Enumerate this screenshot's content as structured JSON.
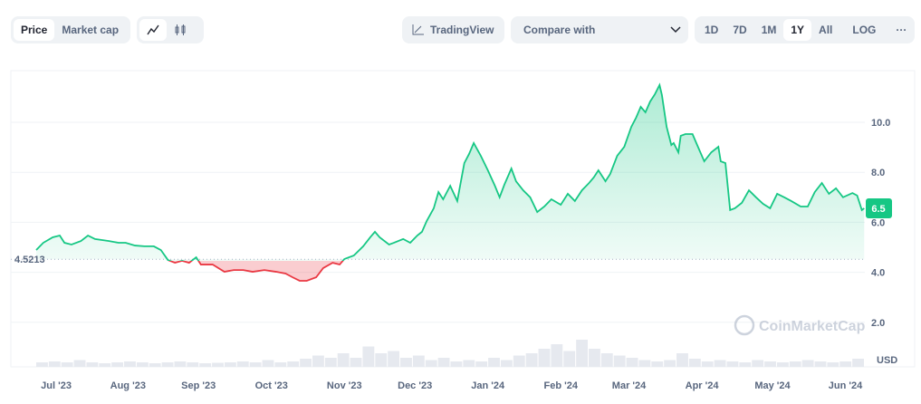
{
  "toolbar": {
    "view_tabs": [
      {
        "label": "Price",
        "active": true
      },
      {
        "label": "Market cap",
        "active": false
      }
    ],
    "chart_types": [
      {
        "icon": "line-chart-icon",
        "active": true
      },
      {
        "icon": "candlestick-icon",
        "active": false
      }
    ],
    "tradingview_label": "TradingView",
    "compare_label": "Compare with",
    "ranges": [
      {
        "label": "1D"
      },
      {
        "label": "7D"
      },
      {
        "label": "1M"
      },
      {
        "label": "1Y",
        "active": true
      },
      {
        "label": "All"
      }
    ],
    "log_label": "LOG",
    "more_label": "···"
  },
  "watermark": "CoinMarketCap",
  "colors": {
    "up": "#16c784",
    "down": "#ea3943"
  },
  "chart_data": {
    "type": "line",
    "x_unit": "days since first point (~2023-06-22)",
    "baseline": 4.5213,
    "baseline_label": "4.5213",
    "current_value_label": "6.5",
    "ylim": [
      0,
      12
    ],
    "yticks": [
      {
        "v": 2,
        "label": "2.0"
      },
      {
        "v": 4,
        "label": "4.0"
      },
      {
        "v": 6,
        "label": "6.0"
      },
      {
        "v": 8,
        "label": "8.0"
      },
      {
        "v": 10,
        "label": "10.0"
      }
    ],
    "ylabel": "USD",
    "xticks": [
      {
        "d": 8.5,
        "label": "Jul '23"
      },
      {
        "d": 39,
        "label": "Aug '23"
      },
      {
        "d": 69,
        "label": "Sep '23"
      },
      {
        "d": 100,
        "label": "Oct '23"
      },
      {
        "d": 131,
        "label": "Nov '23"
      },
      {
        "d": 161,
        "label": "Dec '23"
      },
      {
        "d": 192,
        "label": "Jan '24"
      },
      {
        "d": 223,
        "label": "Feb '24"
      },
      {
        "d": 252,
        "label": "Mar '24"
      },
      {
        "d": 283,
        "label": "Apr '24"
      },
      {
        "d": 313,
        "label": "May '24"
      },
      {
        "d": 344,
        "label": "Jun '24"
      }
    ],
    "points": [
      [
        0,
        4.89
      ],
      [
        3,
        5.18
      ],
      [
        7,
        5.4
      ],
      [
        10,
        5.47
      ],
      [
        12,
        5.18
      ],
      [
        15,
        5.11
      ],
      [
        19,
        5.25
      ],
      [
        22,
        5.47
      ],
      [
        25,
        5.33
      ],
      [
        28,
        5.29
      ],
      [
        31,
        5.25
      ],
      [
        35,
        5.18
      ],
      [
        38,
        5.18
      ],
      [
        42,
        5.07
      ],
      [
        46,
        5.04
      ],
      [
        50,
        5.04
      ],
      [
        53,
        4.89
      ],
      [
        56,
        4.49
      ],
      [
        59,
        4.38
      ],
      [
        62,
        4.46
      ],
      [
        65,
        4.38
      ],
      [
        68,
        4.6
      ],
      [
        70,
        4.31
      ],
      [
        75,
        4.31
      ],
      [
        80,
        4.02
      ],
      [
        84,
        4.09
      ],
      [
        88,
        4.09
      ],
      [
        92,
        4.02
      ],
      [
        97,
        4.09
      ],
      [
        102,
        4.02
      ],
      [
        106,
        3.95
      ],
      [
        109,
        3.8
      ],
      [
        112,
        3.66
      ],
      [
        115,
        3.66
      ],
      [
        119,
        3.8
      ],
      [
        122,
        4.17
      ],
      [
        126,
        4.38
      ],
      [
        129,
        4.31
      ],
      [
        131,
        4.53
      ],
      [
        135,
        4.67
      ],
      [
        139,
        5.04
      ],
      [
        142,
        5.4
      ],
      [
        144,
        5.62
      ],
      [
        146,
        5.4
      ],
      [
        150,
        5.11
      ],
      [
        152,
        5.18
      ],
      [
        156,
        5.33
      ],
      [
        159,
        5.18
      ],
      [
        162,
        5.47
      ],
      [
        164,
        5.62
      ],
      [
        166,
        6.05
      ],
      [
        169,
        6.56
      ],
      [
        171,
        7.21
      ],
      [
        173,
        6.92
      ],
      [
        176,
        7.46
      ],
      [
        179,
        6.85
      ],
      [
        182,
        8.37
      ],
      [
        184,
        8.73
      ],
      [
        186,
        9.17
      ],
      [
        189,
        8.66
      ],
      [
        192,
        8.08
      ],
      [
        195,
        7.46
      ],
      [
        197,
        7.0
      ],
      [
        199,
        7.5
      ],
      [
        202,
        8.15
      ],
      [
        204,
        7.64
      ],
      [
        207,
        7.28
      ],
      [
        210,
        7.0
      ],
      [
        213,
        6.41
      ],
      [
        216,
        6.63
      ],
      [
        219,
        6.92
      ],
      [
        223,
        6.7
      ],
      [
        226,
        7.14
      ],
      [
        229,
        6.85
      ],
      [
        232,
        7.28
      ],
      [
        235,
        7.57
      ],
      [
        237,
        7.79
      ],
      [
        239,
        8.08
      ],
      [
        242,
        7.64
      ],
      [
        244,
        7.93
      ],
      [
        247,
        8.66
      ],
      [
        250,
        9.02
      ],
      [
        253,
        9.82
      ],
      [
        255,
        10.18
      ],
      [
        257,
        10.62
      ],
      [
        259,
        10.4
      ],
      [
        261,
        10.83
      ],
      [
        263,
        11.12
      ],
      [
        265,
        11.49
      ],
      [
        266,
        11.09
      ],
      [
        268,
        9.82
      ],
      [
        270,
        9.09
      ],
      [
        271,
        9.17
      ],
      [
        273,
        8.8
      ],
      [
        274,
        9.46
      ],
      [
        276,
        9.53
      ],
      [
        279,
        9.53
      ],
      [
        281,
        9.09
      ],
      [
        284,
        8.44
      ],
      [
        287,
        8.8
      ],
      [
        290,
        9.02
      ],
      [
        291,
        8.44
      ],
      [
        293,
        8.37
      ],
      [
        295,
        6.49
      ],
      [
        297,
        6.56
      ],
      [
        300,
        6.78
      ],
      [
        303,
        7.28
      ],
      [
        306,
        7.0
      ],
      [
        309,
        6.74
      ],
      [
        312,
        6.56
      ],
      [
        315,
        7.14
      ],
      [
        318,
        7.0
      ],
      [
        321,
        6.85
      ],
      [
        325,
        6.63
      ],
      [
        328,
        6.63
      ],
      [
        331,
        7.21
      ],
      [
        334,
        7.57
      ],
      [
        337,
        7.14
      ],
      [
        340,
        7.36
      ],
      [
        343,
        7.0
      ],
      [
        347,
        7.17
      ],
      [
        349,
        7.07
      ],
      [
        351,
        6.49
      ],
      [
        352,
        6.56
      ]
    ],
    "volume_relative": [
      0.1,
      0.12,
      0.1,
      0.15,
      0.1,
      0.08,
      0.1,
      0.12,
      0.1,
      0.08,
      0.1,
      0.12,
      0.1,
      0.08,
      0.09,
      0.1,
      0.12,
      0.1,
      0.15,
      0.1,
      0.12,
      0.18,
      0.25,
      0.2,
      0.3,
      0.2,
      0.45,
      0.3,
      0.35,
      0.2,
      0.25,
      0.15,
      0.2,
      0.12,
      0.15,
      0.12,
      0.2,
      0.15,
      0.25,
      0.3,
      0.4,
      0.5,
      0.35,
      0.6,
      0.4,
      0.3,
      0.25,
      0.2,
      0.15,
      0.12,
      0.15,
      0.3,
      0.18,
      0.12,
      0.15,
      0.12,
      0.1,
      0.15,
      0.12,
      0.1,
      0.12,
      0.15,
      0.12,
      0.1,
      0.12,
      0.18
    ]
  }
}
